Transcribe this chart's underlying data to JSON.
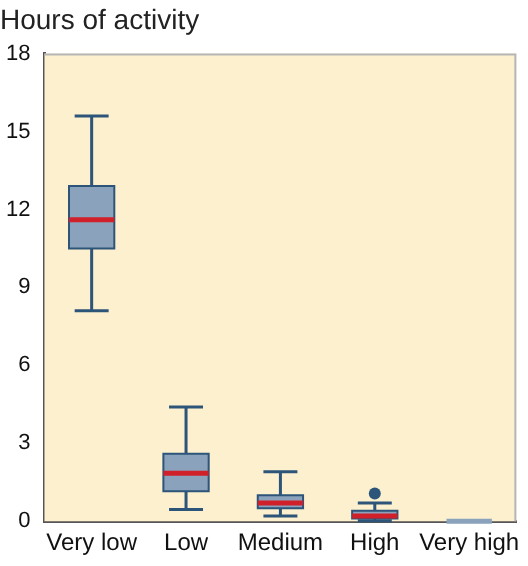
{
  "chart_data": {
    "type": "box",
    "title": "Hours of activity",
    "categories": [
      "Very low",
      "Low",
      "Medium",
      "High",
      "Very high"
    ],
    "boxes": [
      {
        "low": 8.1,
        "q1": 10.5,
        "median": 11.6,
        "q3": 12.9,
        "high": 15.6
      },
      {
        "low": 0.45,
        "q1": 1.15,
        "median": 1.85,
        "q3": 2.6,
        "high": 4.4
      },
      {
        "low": 0.2,
        "q1": 0.5,
        "median": 0.7,
        "q3": 1.0,
        "high": 1.9
      },
      {
        "low": 0.02,
        "q1": 0.1,
        "median": 0.2,
        "q3": 0.4,
        "high": 0.7,
        "outliers": [
          1.07
        ]
      },
      {
        "low": 0,
        "q1": 0,
        "median": 0,
        "q3": 0,
        "high": 0
      }
    ],
    "color": "#8aa2bb",
    "ylim": [
      0,
      18
    ],
    "yticks": [
      0,
      3,
      6,
      9,
      12,
      15,
      18
    ],
    "grid": false,
    "legend": false
  }
}
